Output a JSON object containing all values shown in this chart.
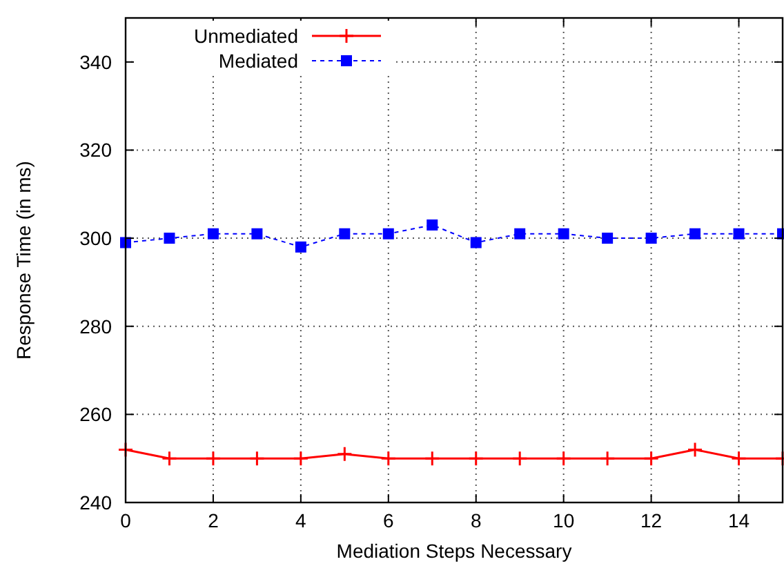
{
  "chart_data": {
    "type": "line",
    "xlabel": "Mediation Steps Necessary",
    "ylabel": "Response Time (in ms)",
    "x": [
      0,
      1,
      2,
      3,
      4,
      5,
      6,
      7,
      8,
      9,
      10,
      11,
      12,
      13,
      14,
      15
    ],
    "series": [
      {
        "name": "Unmediated",
        "color": "#ff0000",
        "marker": "cross",
        "line_style": "solid",
        "values": [
          252,
          250,
          250,
          250,
          250,
          251,
          250,
          250,
          250,
          250,
          250,
          250,
          250,
          252,
          250,
          250
        ]
      },
      {
        "name": "Mediated",
        "color": "#0000ff",
        "marker": "square",
        "line_style": "dashed",
        "values": [
          299,
          300,
          301,
          301,
          298,
          301,
          301,
          303,
          299,
          301,
          301,
          300,
          300,
          301,
          301,
          301
        ]
      }
    ],
    "xlim": [
      0,
      15
    ],
    "xticks": [
      0,
      2,
      4,
      6,
      8,
      10,
      12,
      14
    ],
    "ylim": [
      240,
      350
    ],
    "yticks": [
      240,
      260,
      280,
      300,
      320,
      340
    ],
    "grid": true,
    "legend": "top left"
  }
}
